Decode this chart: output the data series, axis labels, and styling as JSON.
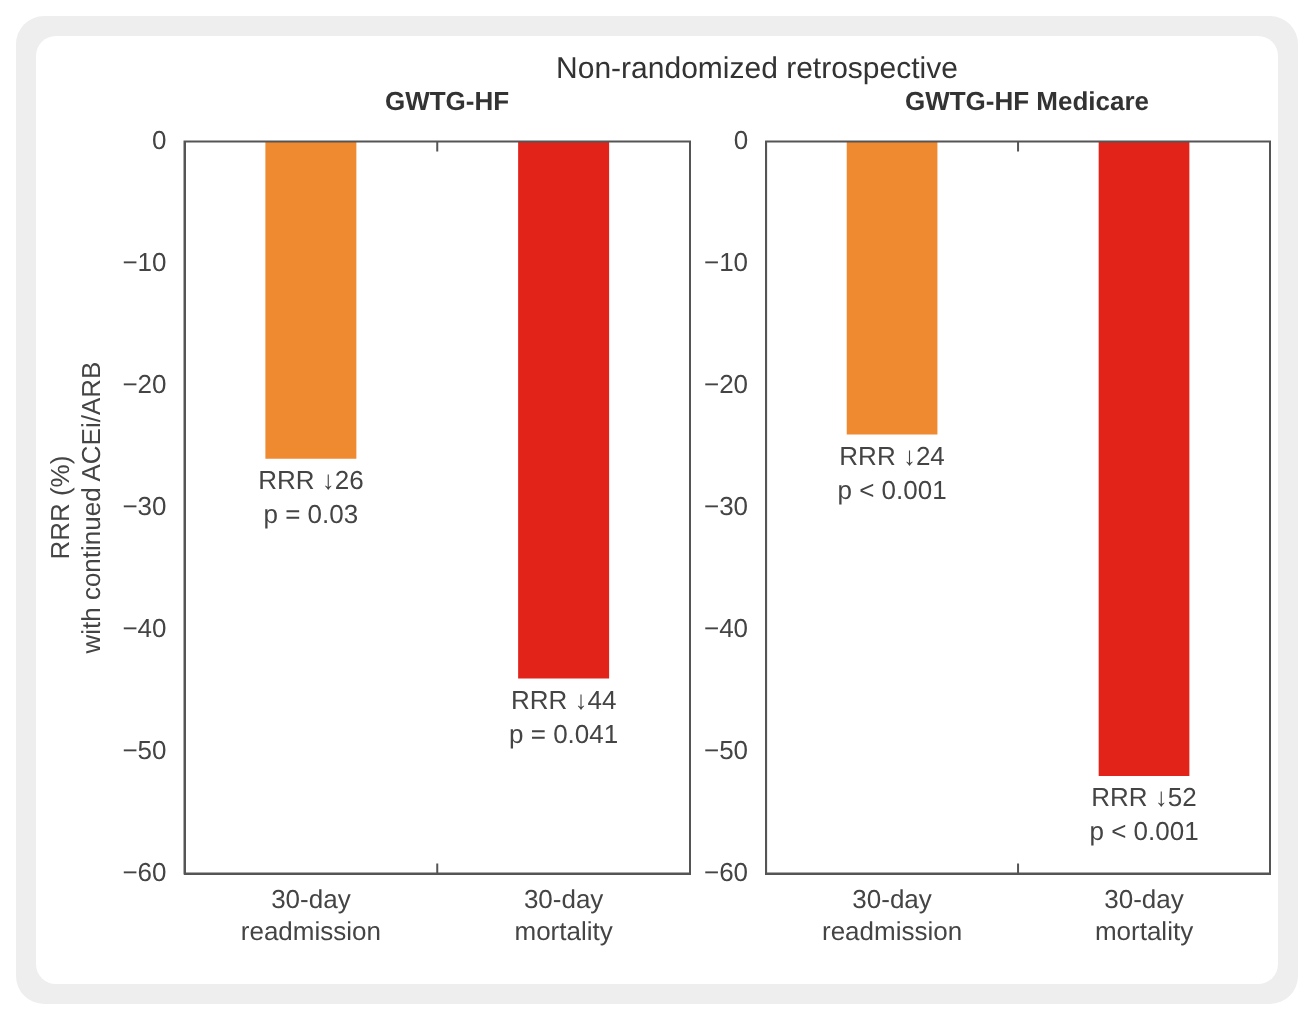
{
  "chart_data": [
    {
      "type": "bar",
      "title": "Non-randomized retrospective",
      "subtitle": "GWTG-HF",
      "ylabel": "RRR (%)\nwith continued ACEi/ARB",
      "categories": [
        "30-day readmission",
        "30-day mortality"
      ],
      "values": [
        -26,
        -44
      ],
      "colors": [
        "#f08a30",
        "#e2231a"
      ],
      "ylim": [
        -60,
        0
      ],
      "yticks": [
        0,
        -10,
        -20,
        -30,
        -40,
        -50,
        -60
      ],
      "grid": false,
      "legend": false,
      "annotations": [
        {
          "text": "RRR ↓26\np = 0.03",
          "x": "30-day readmission",
          "y": -26
        },
        {
          "text": "RRR ↓44\np = 0.041",
          "x": "30-day mortality",
          "y": -44
        }
      ]
    },
    {
      "type": "bar",
      "subtitle": "GWTG-HF Medicare",
      "categories": [
        "30-day readmission",
        "30-day mortality"
      ],
      "values": [
        -24,
        -52
      ],
      "colors": [
        "#f08a30",
        "#e2231a"
      ],
      "ylim": [
        -60,
        0
      ],
      "yticks": [
        0,
        -10,
        -20,
        -30,
        -40,
        -50,
        -60
      ],
      "grid": false,
      "legend": false,
      "annotations": [
        {
          "text": "RRR ↓24\np < 0.001",
          "x": "30-day readmission",
          "y": -24
        },
        {
          "text": "RRR ↓52\np < 0.001",
          "x": "30-day mortality",
          "y": -52
        }
      ]
    }
  ]
}
